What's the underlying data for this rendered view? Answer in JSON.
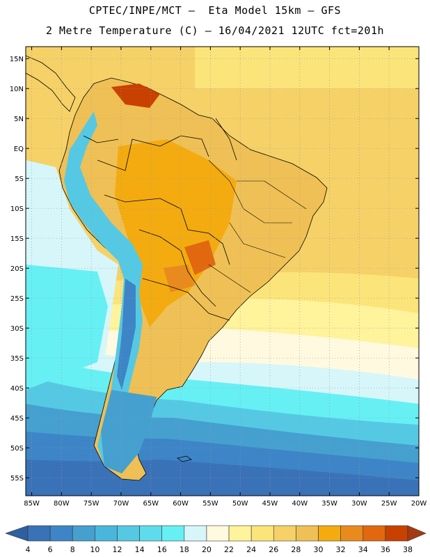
{
  "header": {
    "line1": "CPTEC/INPE/MCT –  Eta Model 15km – GFS",
    "line2": "2 Metre Temperature (C) – 16/04/2021 12UTC fct=201h"
  },
  "axes": {
    "lat_labels": [
      "15N",
      "10N",
      "5N",
      "EQ",
      "5S",
      "10S",
      "15S",
      "20S",
      "25S",
      "30S",
      "35S",
      "40S",
      "45S",
      "50S",
      "55S"
    ],
    "lon_labels": [
      "85W",
      "80W",
      "75W",
      "70W",
      "65W",
      "60W",
      "55W",
      "50W",
      "45W",
      "40W",
      "35W",
      "30W",
      "25W",
      "20W"
    ],
    "lon_range": [
      -86,
      -20
    ],
    "lat_range": [
      -58,
      17
    ]
  },
  "colorbar": {
    "labels": [
      "4",
      "6",
      "8",
      "10",
      "12",
      "14",
      "16",
      "18",
      "20",
      "22",
      "24",
      "26",
      "28",
      "30",
      "32",
      "34",
      "36",
      "38"
    ],
    "colors": [
      "#3a72b8",
      "#3d85c6",
      "#45a0cf",
      "#4ab6dc",
      "#55c9e4",
      "#5edcec",
      "#66f0f4",
      "#d6f6fa",
      "#fff9e0",
      "#fff39c",
      "#fbe47a",
      "#f5d167",
      "#efc055",
      "#f3ab10",
      "#e98a1d",
      "#e2680f",
      "#c94100"
    ],
    "low_arrow_color": "#2f5fa0",
    "high_arrow_color": "#a53a12"
  }
}
